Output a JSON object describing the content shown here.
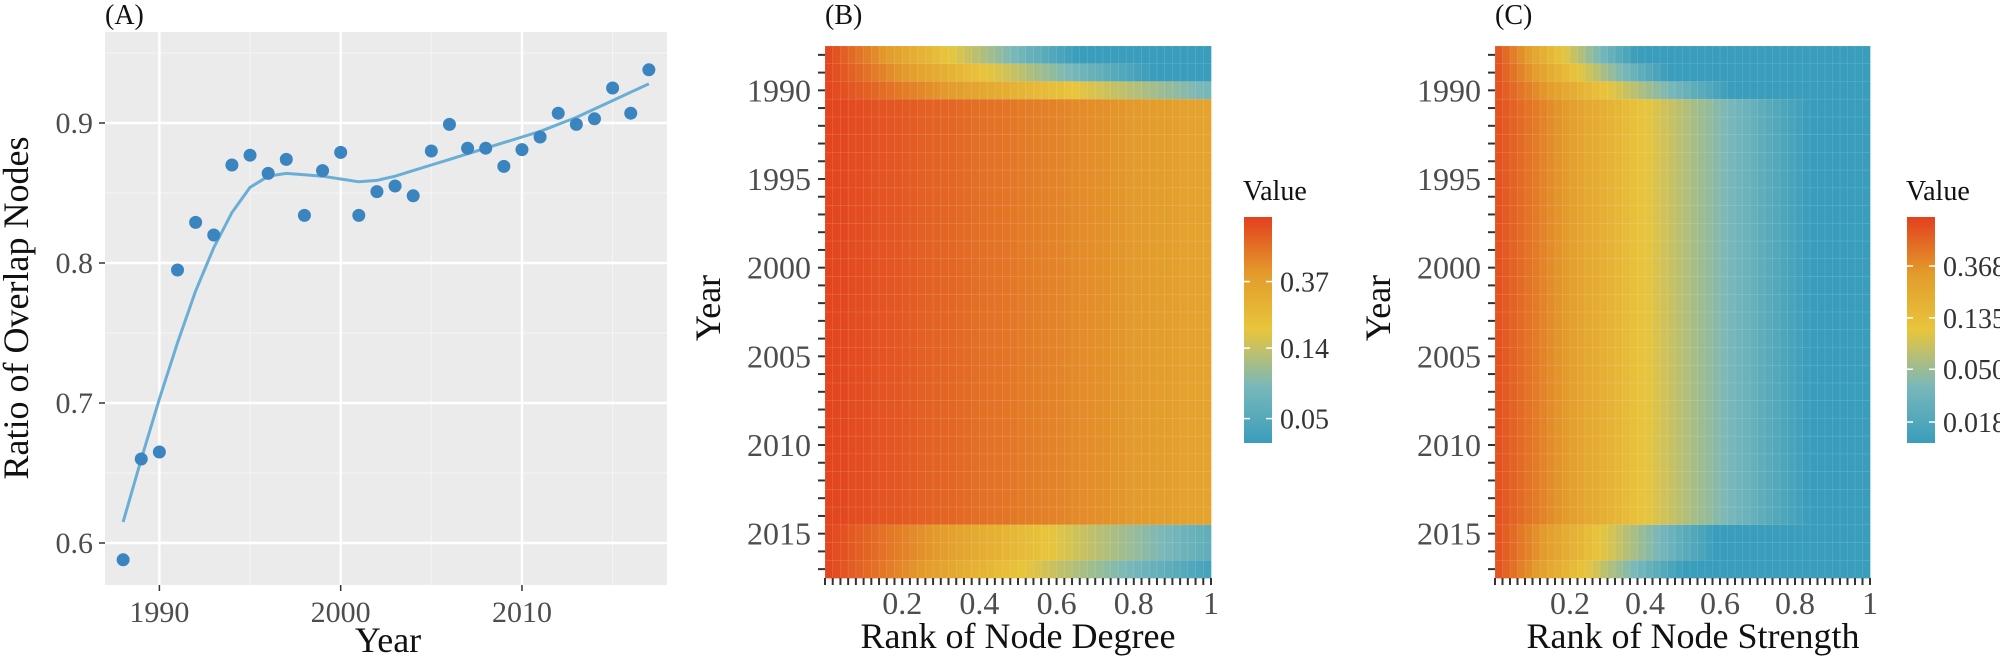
{
  "chart_data": [
    {
      "type": "scatter",
      "panel_label": "(A)",
      "xlabel": "Year",
      "ylabel": "Ratio of Overlap Nodes",
      "xlim": [
        1987,
        2018
      ],
      "ylim": [
        0.57,
        0.965
      ],
      "x_ticks": [
        1990,
        2000,
        2010
      ],
      "y_ticks": [
        0.6,
        0.7,
        0.8,
        0.9
      ],
      "grid": true,
      "background": "#ebebeb",
      "point_color": "#3a84c0",
      "line_color": "#6aaed6",
      "points": [
        {
          "x": 1988,
          "y": 0.588
        },
        {
          "x": 1989,
          "y": 0.66
        },
        {
          "x": 1990,
          "y": 0.665
        },
        {
          "x": 1991,
          "y": 0.795
        },
        {
          "x": 1992,
          "y": 0.829
        },
        {
          "x": 1993,
          "y": 0.82
        },
        {
          "x": 1994,
          "y": 0.87
        },
        {
          "x": 1995,
          "y": 0.877
        },
        {
          "x": 1996,
          "y": 0.864
        },
        {
          "x": 1997,
          "y": 0.874
        },
        {
          "x": 1998,
          "y": 0.834
        },
        {
          "x": 1999,
          "y": 0.866
        },
        {
          "x": 2000,
          "y": 0.879
        },
        {
          "x": 2001,
          "y": 0.834
        },
        {
          "x": 2002,
          "y": 0.851
        },
        {
          "x": 2003,
          "y": 0.855
        },
        {
          "x": 2004,
          "y": 0.848
        },
        {
          "x": 2005,
          "y": 0.88
        },
        {
          "x": 2006,
          "y": 0.899
        },
        {
          "x": 2007,
          "y": 0.882
        },
        {
          "x": 2008,
          "y": 0.882
        },
        {
          "x": 2009,
          "y": 0.869
        },
        {
          "x": 2010,
          "y": 0.881
        },
        {
          "x": 2011,
          "y": 0.89
        },
        {
          "x": 2012,
          "y": 0.907
        },
        {
          "x": 2013,
          "y": 0.899
        },
        {
          "x": 2014,
          "y": 0.903
        },
        {
          "x": 2015,
          "y": 0.925
        },
        {
          "x": 2016,
          "y": 0.907
        },
        {
          "x": 2017,
          "y": 0.938
        }
      ],
      "smooth_line": [
        {
          "x": 1988,
          "y": 0.615
        },
        {
          "x": 1989,
          "y": 0.66
        },
        {
          "x": 1990,
          "y": 0.703
        },
        {
          "x": 1991,
          "y": 0.743
        },
        {
          "x": 1992,
          "y": 0.78
        },
        {
          "x": 1993,
          "y": 0.811
        },
        {
          "x": 1994,
          "y": 0.836
        },
        {
          "x": 1995,
          "y": 0.854
        },
        {
          "x": 1996,
          "y": 0.862
        },
        {
          "x": 1997,
          "y": 0.864
        },
        {
          "x": 1998,
          "y": 0.863
        },
        {
          "x": 1999,
          "y": 0.862
        },
        {
          "x": 2000,
          "y": 0.86
        },
        {
          "x": 2001,
          "y": 0.858
        },
        {
          "x": 2002,
          "y": 0.859
        },
        {
          "x": 2003,
          "y": 0.862
        },
        {
          "x": 2004,
          "y": 0.866
        },
        {
          "x": 2005,
          "y": 0.87
        },
        {
          "x": 2006,
          "y": 0.874
        },
        {
          "x": 2007,
          "y": 0.878
        },
        {
          "x": 2008,
          "y": 0.882
        },
        {
          "x": 2009,
          "y": 0.886
        },
        {
          "x": 2010,
          "y": 0.89
        },
        {
          "x": 2011,
          "y": 0.894
        },
        {
          "x": 2012,
          "y": 0.899
        },
        {
          "x": 2013,
          "y": 0.904
        },
        {
          "x": 2014,
          "y": 0.91
        },
        {
          "x": 2015,
          "y": 0.916
        },
        {
          "x": 2016,
          "y": 0.922
        },
        {
          "x": 2017,
          "y": 0.928
        }
      ]
    },
    {
      "type": "heatmap",
      "panel_label": "(B)",
      "xlabel": "Rank of Node Degree",
      "ylabel": "Year",
      "x_ticks": [
        0.2,
        0.4,
        0.6,
        0.8,
        1
      ],
      "x_tick_labels": [
        "0.2",
        "0.4",
        "0.6",
        "0.8",
        "1"
      ],
      "y_ticks": [
        1990,
        1995,
        2000,
        2005,
        2010,
        2015
      ],
      "year_range": [
        1988,
        2017
      ],
      "rank_range": [
        0,
        1
      ],
      "n_columns": 50,
      "legend": {
        "title": "Value",
        "scale": "log",
        "ticks": [
          0.37,
          0.14,
          0.05
        ],
        "tick_labels": [
          "0.37",
          "0.14",
          "0.05"
        ],
        "range": [
          0.035,
          0.95
        ]
      },
      "colorscale": [
        "#3a9dbb",
        "#79b8ba",
        "#e8c53c",
        "#e39b2b",
        "#e3401f"
      ],
      "note": "value decays with rank; 1988-1989 and 2015-2017 rows decay faster",
      "decay_by_year": [
        {
          "years": [
            1988,
            1988
          ],
          "decay_length": 0.2
        },
        {
          "years": [
            1989,
            1989
          ],
          "decay_length": 0.26
        },
        {
          "years": [
            1990,
            1990
          ],
          "decay_length": 0.4
        },
        {
          "years": [
            1991,
            2014
          ],
          "decay_length": 1.02
        },
        {
          "years": [
            2015,
            2016
          ],
          "decay_length": 0.36
        },
        {
          "years": [
            2017,
            2017
          ],
          "decay_length": 0.32
        }
      ],
      "start_value": 0.92
    },
    {
      "type": "heatmap",
      "panel_label": "(C)",
      "xlabel": "Rank of Node Strength",
      "ylabel": "Year",
      "x_ticks": [
        0.2,
        0.4,
        0.6,
        0.8,
        1
      ],
      "x_tick_labels": [
        "0.2",
        "0.4",
        "0.6",
        "0.8",
        "1"
      ],
      "y_ticks": [
        1990,
        1995,
        2000,
        2005,
        2010,
        2015
      ],
      "year_range": [
        1988,
        2017
      ],
      "rank_range": [
        0,
        1
      ],
      "n_columns": 50,
      "legend": {
        "title": "Value",
        "scale": "log",
        "ticks": [
          0.368,
          0.135,
          0.05,
          0.018
        ],
        "tick_labels": [
          "0.368",
          "0.135",
          "0.050",
          "0.018"
        ],
        "range": [
          0.012,
          0.95
        ]
      },
      "colorscale": [
        "#3a9dbb",
        "#79b8ba",
        "#e8c53c",
        "#e39b2b",
        "#e3401f"
      ],
      "note": "value decays with rank; 1988-1989 and 2015-2017 rows decay faster",
      "decay_by_year": [
        {
          "years": [
            1988,
            1988
          ],
          "decay_length": 0.09
        },
        {
          "years": [
            1989,
            1989
          ],
          "decay_length": 0.11
        },
        {
          "years": [
            1990,
            1990
          ],
          "decay_length": 0.15
        },
        {
          "years": [
            1991,
            2014
          ],
          "decay_length": 0.2
        },
        {
          "years": [
            2015,
            2016
          ],
          "decay_length": 0.14
        },
        {
          "years": [
            2017,
            2017
          ],
          "decay_length": 0.12
        }
      ],
      "start_value": 0.8
    }
  ]
}
